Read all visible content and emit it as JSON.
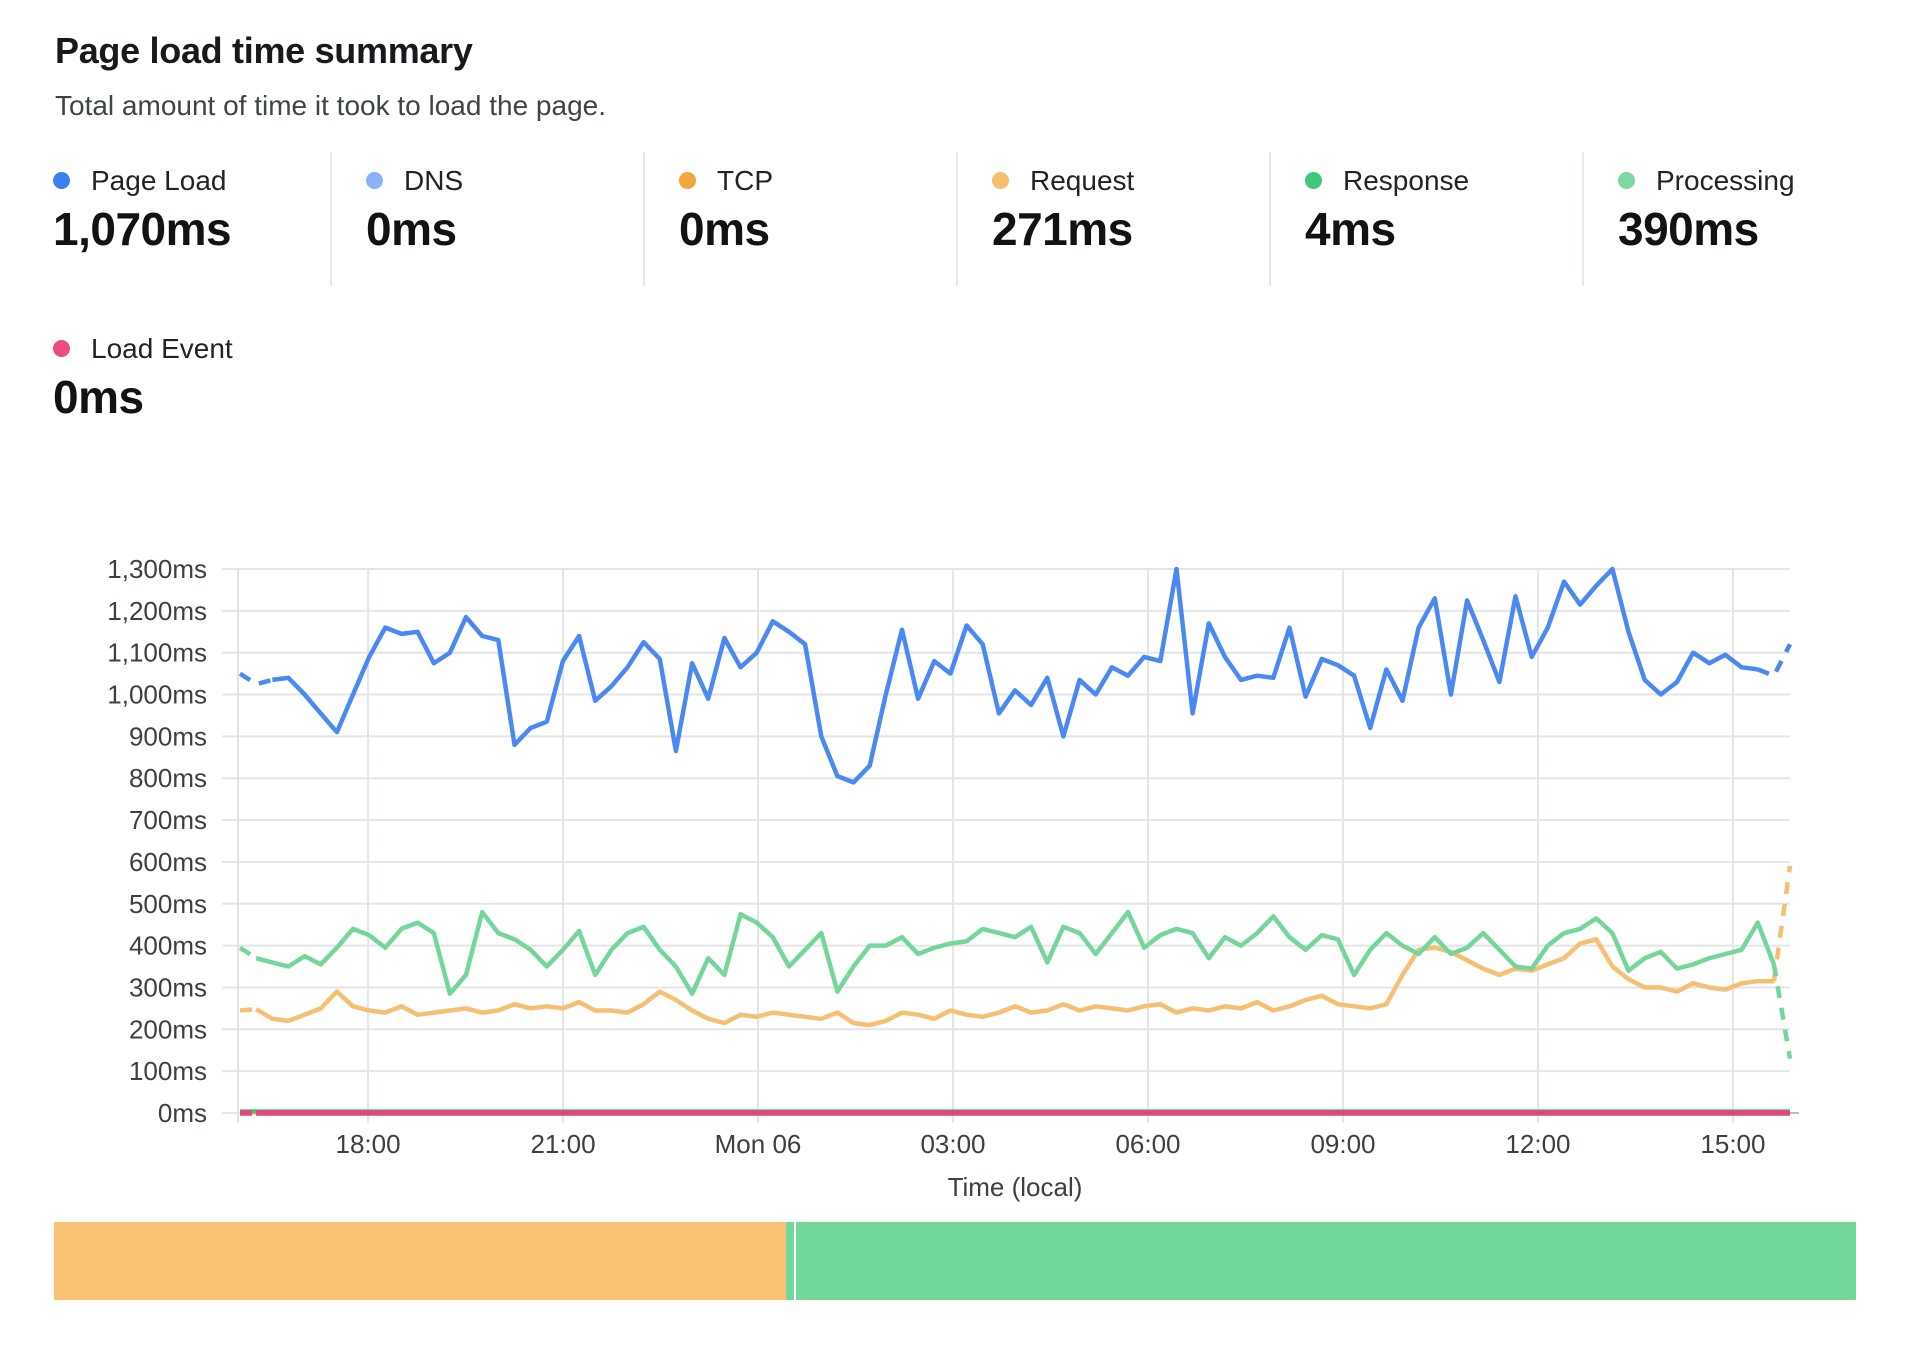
{
  "header": {
    "title": "Page load time summary",
    "subtitle": "Total amount of time it took to load the page."
  },
  "metrics": {
    "row1": [
      {
        "label": "Page Load",
        "value": "1,070ms",
        "color": "#3d7ff3"
      },
      {
        "label": "DNS",
        "value": "0ms",
        "color": "#8ab2f8"
      },
      {
        "label": "TCP",
        "value": "0ms",
        "color": "#f2a73c"
      },
      {
        "label": "Request",
        "value": "271ms",
        "color": "#f5c06e"
      },
      {
        "label": "Response",
        "value": "4ms",
        "color": "#3fc77d"
      },
      {
        "label": "Processing",
        "value": "390ms",
        "color": "#7cd9a2"
      }
    ],
    "row2": [
      {
        "label": "Load Event",
        "value": "0ms",
        "color": "#f04a82"
      }
    ]
  },
  "chart_data": {
    "type": "line",
    "title": "Page load time summary",
    "xlabel": "Time (local)",
    "ylabel": "",
    "ylim": [
      0,
      1300
    ],
    "grid": true,
    "legend_position": "top-metric-tiles",
    "y_ticks": {
      "values": [
        0,
        100,
        200,
        300,
        400,
        500,
        600,
        700,
        800,
        900,
        1000,
        1100,
        1200,
        1300
      ],
      "labels": [
        "0ms",
        "100ms",
        "200ms",
        "300ms",
        "400ms",
        "500ms",
        "600ms",
        "700ms",
        "800ms",
        "900ms",
        "1,000ms",
        "1,100ms",
        "1,200ms",
        "1,300ms"
      ]
    },
    "x_ticks": {
      "labels": [
        "18:00",
        "21:00",
        "Mon 06",
        "03:00",
        "06:00",
        "09:00",
        "12:00",
        "15:00"
      ],
      "fractions": [
        0.0826,
        0.2084,
        0.3342,
        0.46,
        0.5858,
        0.7116,
        0.8374,
        0.9632
      ]
    },
    "series": [
      {
        "name": "DNS",
        "color": "#8ab2f8",
        "stroke_width": 3,
        "flat": 0
      },
      {
        "name": "TCP",
        "color": "#f2a73c",
        "stroke_width": 3,
        "flat": 0
      },
      {
        "name": "Response",
        "color": "#3fc77d",
        "stroke_width": 4,
        "flat": 4
      },
      {
        "name": "Load Event",
        "color": "#e5457f",
        "stroke_width": 5.5,
        "flat": 0,
        "dash_head": 1
      },
      {
        "name": "Request",
        "color": "#f6bf72",
        "stroke_width": 4.5,
        "dash_head": 1,
        "dash_tail": 1,
        "values": [
          245,
          248,
          225,
          220,
          235,
          250,
          290,
          255,
          245,
          240,
          255,
          235,
          240,
          245,
          250,
          240,
          245,
          260,
          250,
          255,
          250,
          265,
          245,
          245,
          240,
          260,
          290,
          270,
          245,
          225,
          215,
          235,
          230,
          240,
          235,
          230,
          225,
          240,
          215,
          210,
          220,
          240,
          235,
          225,
          245,
          235,
          230,
          240,
          255,
          240,
          245,
          260,
          245,
          255,
          250,
          245,
          255,
          260,
          240,
          250,
          245,
          255,
          250,
          265,
          245,
          255,
          270,
          280,
          260,
          255,
          250,
          260,
          330,
          390,
          395,
          385,
          365,
          345,
          330,
          345,
          340,
          355,
          370,
          405,
          415,
          350,
          320,
          300,
          300,
          290,
          310,
          300,
          295,
          310,
          315,
          315,
          590
        ]
      },
      {
        "name": "Processing",
        "color": "#75d69c",
        "stroke_width": 4.5,
        "dash_head": 1,
        "dash_tail": 1,
        "values": [
          395,
          370,
          360,
          350,
          375,
          355,
          395,
          440,
          425,
          395,
          440,
          455,
          430,
          285,
          330,
          480,
          430,
          415,
          390,
          350,
          390,
          435,
          330,
          390,
          430,
          445,
          390,
          350,
          285,
          370,
          330,
          475,
          455,
          420,
          350,
          390,
          430,
          290,
          350,
          400,
          400,
          420,
          380,
          395,
          405,
          410,
          440,
          430,
          420,
          445,
          360,
          445,
          430,
          380,
          430,
          480,
          395,
          425,
          440,
          430,
          370,
          420,
          400,
          430,
          470,
          420,
          390,
          425,
          415,
          330,
          390,
          430,
          400,
          380,
          420,
          380,
          395,
          430,
          390,
          350,
          345,
          400,
          430,
          440,
          465,
          430,
          340,
          370,
          385,
          345,
          355,
          370,
          380,
          390,
          455,
          355,
          130
        ]
      },
      {
        "name": "Page Load",
        "color": "#4a89f3",
        "stroke_width": 4.5,
        "dash_head": 2,
        "dash_tail": 2,
        "values": [
          1050,
          1025,
          1035,
          1040,
          1000,
          955,
          910,
          1000,
          1090,
          1160,
          1145,
          1150,
          1075,
          1100,
          1185,
          1140,
          1130,
          880,
          920,
          935,
          1080,
          1140,
          985,
          1020,
          1065,
          1125,
          1085,
          865,
          1075,
          990,
          1135,
          1065,
          1100,
          1175,
          1150,
          1120,
          900,
          805,
          790,
          830,
          1000,
          1155,
          990,
          1080,
          1050,
          1165,
          1120,
          955,
          1010,
          975,
          1040,
          900,
          1035,
          1000,
          1065,
          1045,
          1090,
          1080,
          1300,
          955,
          1170,
          1090,
          1035,
          1045,
          1040,
          1160,
          995,
          1085,
          1070,
          1045,
          920,
          1060,
          985,
          1160,
          1230,
          1000,
          1225,
          1130,
          1030,
          1235,
          1090,
          1160,
          1270,
          1215,
          1260,
          1300,
          1150,
          1035,
          1000,
          1030,
          1100,
          1075,
          1095,
          1065,
          1060,
          1045,
          1120
        ]
      }
    ]
  },
  "footer_bar": {
    "segments": [
      {
        "color": "#f8c374",
        "width_pct": 40.6
      },
      {
        "color": "#72d79a",
        "width_pct": 0.45
      },
      {
        "color": "#ffffff",
        "width_pct": 0.12
      },
      {
        "color": "#72d79a",
        "width_pct": 58.83
      }
    ]
  }
}
